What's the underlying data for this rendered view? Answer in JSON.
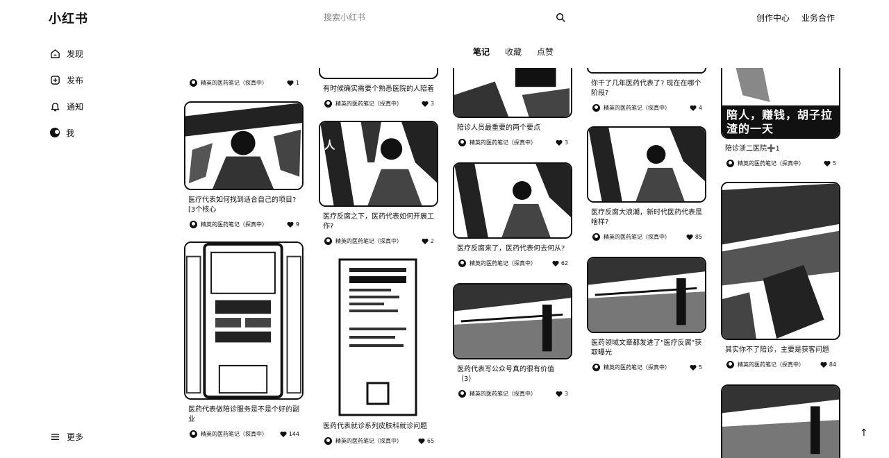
{
  "app": {
    "logo": "小红书"
  },
  "search": {
    "placeholder": "搜索小红书",
    "value": ""
  },
  "header": {
    "links": [
      "创作中心",
      "业务合作"
    ]
  },
  "sidebar": {
    "items": [
      {
        "label": "发现",
        "icon": "home-icon"
      },
      {
        "label": "发布",
        "icon": "plus-square-icon"
      },
      {
        "label": "通知",
        "icon": "bell-icon"
      },
      {
        "label": "我",
        "icon": "avatar"
      }
    ],
    "more_label": "更多"
  },
  "tabs": [
    {
      "label": "笔记",
      "active": true
    },
    {
      "label": "收藏",
      "active": false
    },
    {
      "label": "点赞",
      "active": false
    }
  ],
  "author": "精英的医药笔记（探真中）",
  "columns": [
    [
      {
        "title": "",
        "likes": "1"
      },
      {
        "title": "医疗代表如何找到适合自己的项目?\n[3个核心",
        "likes": "9"
      },
      {
        "title": "医药代表做陪诊服务是不是个好的副\n业",
        "likes": "144"
      }
    ],
    [
      {
        "title": "有时候确实需要个熟悉医院的人陪着",
        "likes": "3"
      },
      {
        "title": "医疗反腐之下，医药代表如何开展工\n作?",
        "likes": "2"
      },
      {
        "title": "医药代表就诊系列皮肤科就诊问题",
        "likes": "65"
      }
    ],
    [
      {
        "title": "陪诊人员最重要的两个要点",
        "likes": "3"
      },
      {
        "title": "医疗反腐来了，医药代表何去何从?",
        "likes": "62"
      },
      {
        "title": "医药代表写公众号真的很有价值\n（3）",
        "likes": "3"
      }
    ],
    [
      {
        "title": "你干了几年医药代表了? 现在在哪个\n阶段?",
        "likes": "4"
      },
      {
        "title": "医疗反腐大浪潮，新时代医药代表是\n啥样?",
        "likes": "85"
      },
      {
        "title": "医药领域文章都发进了\"医疗反腐\"获\n取曝光",
        "likes": "5"
      }
    ],
    [
      {
        "title": "陪诊浙二医院➕1",
        "likes": "5",
        "overlay": "陪人，赚钱，胡子拉渣的一天"
      },
      {
        "title": "其实你不了陪诊，主要是获客问题",
        "likes": "84"
      },
      {
        "title": "",
        "likes": ""
      }
    ]
  ]
}
